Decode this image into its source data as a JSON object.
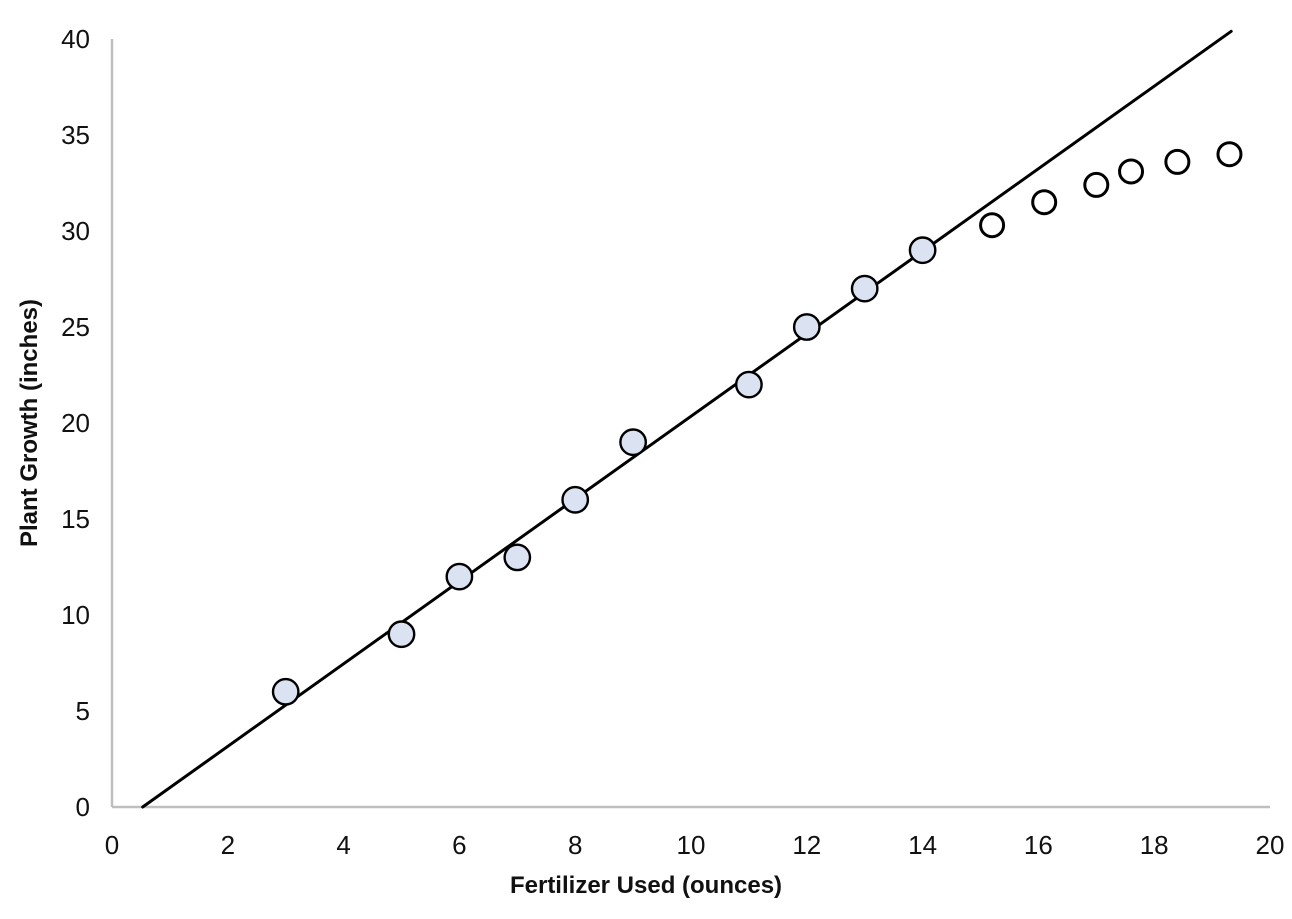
{
  "chart_data": {
    "type": "scatter",
    "title": "",
    "xlabel": "Fertilizer Used (ounces)",
    "ylabel": "Plant Growth (inches)",
    "xlim": [
      0,
      20
    ],
    "ylim": [
      0,
      40
    ],
    "x_ticks": [
      0,
      2,
      4,
      6,
      8,
      10,
      12,
      14,
      16,
      18,
      20
    ],
    "y_ticks": [
      0,
      5,
      10,
      15,
      20,
      25,
      30,
      35,
      40
    ],
    "grid": false,
    "legend": "none",
    "axis_color": "#bfbfbf",
    "text_color": "#111111",
    "series": [
      {
        "name": "trendline",
        "type": "line",
        "color": "#000000",
        "width": 3,
        "points": [
          [
            0.53,
            0
          ],
          [
            19.33,
            40.4
          ]
        ]
      },
      {
        "name": "observed-points",
        "type": "scatter",
        "marker": "circle-filled",
        "marker_fill": "#dbe3f3",
        "marker_stroke": "#000000",
        "marker_stroke_width": 2.4,
        "marker_radius": 12.7,
        "points": [
          [
            3,
            6
          ],
          [
            5,
            9
          ],
          [
            6,
            12
          ],
          [
            7,
            13
          ],
          [
            8,
            16
          ],
          [
            9,
            19
          ],
          [
            11,
            22
          ],
          [
            12,
            25
          ],
          [
            13,
            27
          ],
          [
            14,
            29
          ]
        ]
      },
      {
        "name": "extrapolated-points",
        "type": "scatter",
        "marker": "circle-open",
        "marker_fill": "#ffffff",
        "marker_stroke": "#000000",
        "marker_stroke_width": 3,
        "marker_radius": 11.5,
        "points": [
          [
            15.2,
            30.3
          ],
          [
            16.1,
            31.5
          ],
          [
            17.0,
            32.4
          ],
          [
            17.6,
            33.1
          ],
          [
            18.4,
            33.6
          ],
          [
            19.3,
            34.0
          ]
        ]
      }
    ]
  }
}
